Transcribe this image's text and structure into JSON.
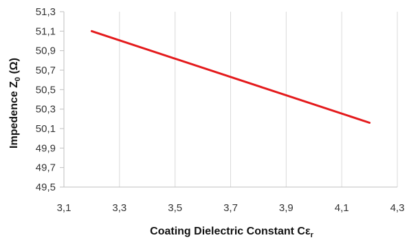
{
  "chart_data": {
    "type": "line",
    "xlabel": {
      "main": "Coating Dielectric Constant Cε",
      "sub": "r"
    },
    "ylabel": {
      "main": "Impedence Z",
      "sub": "0",
      "suffix": " (Ω)"
    },
    "xlim": [
      3.1,
      4.3
    ],
    "ylim": [
      49.5,
      51.3
    ],
    "x_ticks": [
      "3,1",
      "3,3",
      "3,5",
      "3,7",
      "3,9",
      "4,1",
      "4,3"
    ],
    "y_ticks": [
      "49,5",
      "49,7",
      "49,9",
      "50,1",
      "50,3",
      "50,5",
      "50,7",
      "50,9",
      "51,1",
      "51,3"
    ],
    "grid": "vertical",
    "line_color": "#e41a1c",
    "series": [
      {
        "x": [
          3.2,
          4.2
        ],
        "y": [
          51.1,
          50.16
        ]
      }
    ]
  }
}
